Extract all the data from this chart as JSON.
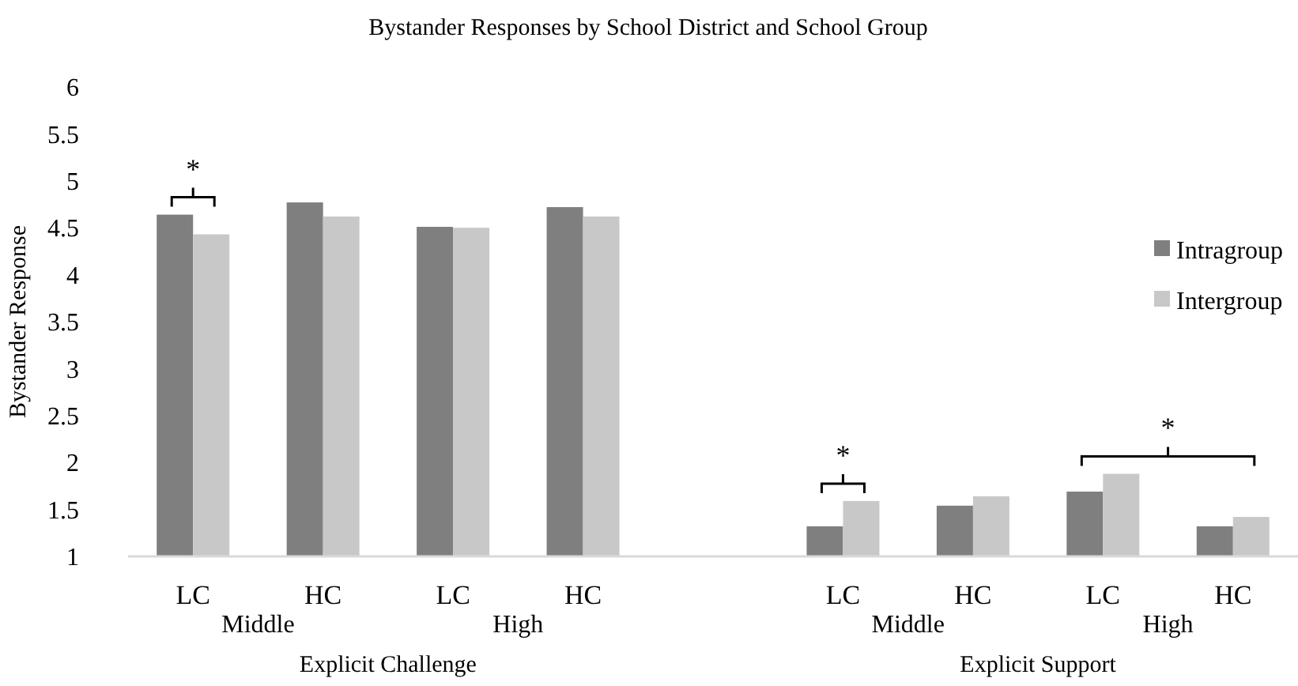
{
  "chart_data": {
    "type": "bar",
    "title": "Bystander Responses by School District and School Group",
    "ylabel": "Bystander Response",
    "categories": [
      "LC",
      "HC",
      "LC",
      "HC",
      null,
      "LC",
      "HC",
      "LC",
      "HC"
    ],
    "series": [
      {
        "name": "Intragroup",
        "color": "#7f7f7f",
        "values": [
          4.64,
          4.77,
          4.51,
          4.72,
          null,
          1.32,
          1.54,
          1.69,
          1.32
        ]
      },
      {
        "name": "Intergroup",
        "color": "#c8c8c8",
        "values": [
          4.43,
          4.62,
          4.5,
          4.62,
          null,
          1.59,
          1.64,
          1.88,
          1.42
        ]
      }
    ],
    "ylim": [
      1,
      6
    ],
    "yticks": [
      1,
      1.5,
      2,
      2.5,
      3,
      3.5,
      4,
      4.5,
      5,
      5.5,
      6
    ],
    "grid": false,
    "legend": "right",
    "annotations": [
      "*",
      "*",
      "*",
      "Middle",
      "High",
      "Middle",
      "High",
      "Explicit Challenge",
      "Explicit Support"
    ]
  }
}
